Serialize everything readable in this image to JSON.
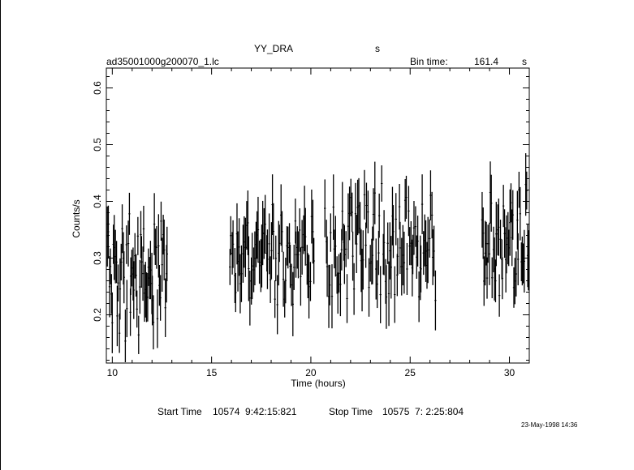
{
  "header": {
    "object": "YY_DRA",
    "s_label": "s",
    "filename": "ad35001000g200070_1.lc",
    "bin_label": "Bin time:",
    "bin_value": "161.4",
    "bin_unit": "s"
  },
  "footer": {
    "start_label": "Start Time",
    "start_value": "10574  9:42:15:821",
    "stop_label": "Stop Time",
    "stop_value": "10575  7: 2:25:804",
    "date_stamp": "23-May-1998 14:36"
  },
  "chart_data": {
    "type": "scatter",
    "xlabel": "Time (hours)",
    "ylabel": "Counts/s",
    "xlim": [
      9.7,
      31.0
    ],
    "ylim": [
      0.115,
      0.635
    ],
    "xticks_major": [
      10,
      15,
      20,
      25,
      30
    ],
    "yticks_major": [
      0.2,
      0.3,
      0.4,
      0.5,
      0.6
    ],
    "xtick_labels": [
      "10",
      "15",
      "20",
      "25",
      "30"
    ],
    "ytick_labels": [
      "0.2",
      "0.3",
      "0.4",
      "0.5",
      "0.6"
    ],
    "error_bars": true,
    "segments": [
      {
        "start": 9.75,
        "end": 12.8,
        "mean": 0.27,
        "amp": 0.09,
        "err": 0.045,
        "n": 62
      },
      {
        "start": 15.9,
        "end": 20.2,
        "mean": 0.3,
        "amp": 0.08,
        "err": 0.045,
        "n": 72
      },
      {
        "start": 20.7,
        "end": 26.3,
        "mean": 0.32,
        "amp": 0.09,
        "err": 0.045,
        "n": 96
      },
      {
        "start": 28.6,
        "end": 31.0,
        "mean": 0.33,
        "amp": 0.08,
        "err": 0.045,
        "n": 46
      }
    ]
  }
}
